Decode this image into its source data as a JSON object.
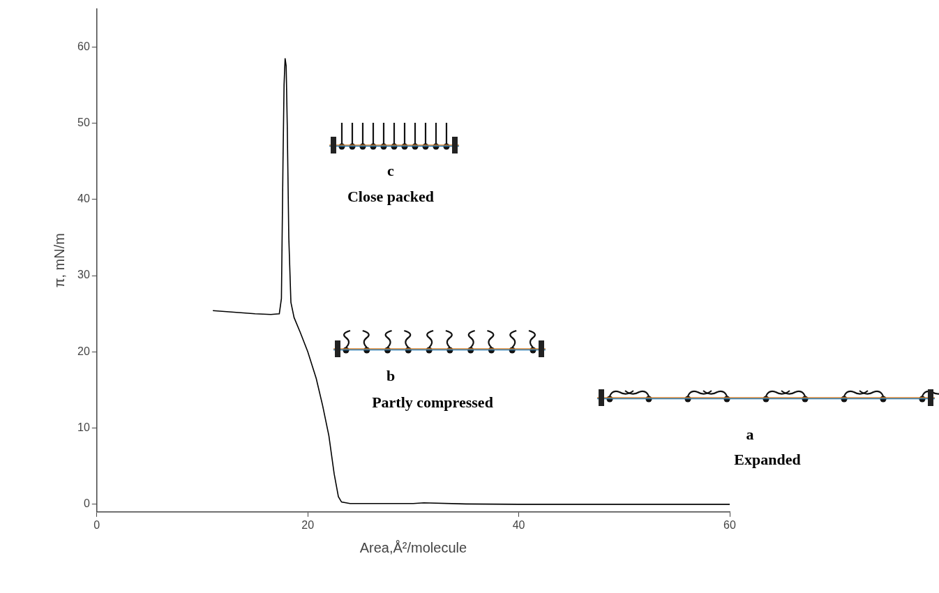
{
  "chart_data": {
    "type": "line",
    "x_label": "Area,Å²/molecule",
    "y_label": "π, mN/m",
    "color": "#000000",
    "x": [
      11.0,
      13.0,
      15.0,
      16.5,
      17.3,
      17.5,
      17.65,
      17.75,
      17.85,
      17.95,
      18.05,
      18.2,
      18.4,
      18.7,
      19.3,
      20.0,
      20.8,
      21.4,
      22.0,
      22.5,
      22.9,
      23.2,
      24.0,
      30.0,
      31.0,
      35.0,
      40.0,
      50.0,
      60.0
    ],
    "values": [
      25.4,
      25.2,
      25.0,
      24.9,
      25.0,
      27.0,
      45.0,
      55.0,
      58.5,
      57.5,
      50.0,
      35.0,
      26.5,
      24.5,
      22.5,
      20.0,
      16.5,
      13.0,
      9.0,
      4.0,
      1.0,
      0.3,
      0.1,
      0.1,
      0.2,
      0.05,
      0.0,
      0.0,
      0.0
    ],
    "xlim": [
      0,
      60
    ],
    "xticks": [
      0,
      20,
      40,
      60
    ],
    "ylim": [
      -1,
      65
    ],
    "yticks": [
      0,
      10,
      20,
      30,
      40,
      50,
      60
    ],
    "grid": false,
    "annotations": [
      {
        "letter": "c",
        "text": "Close packed"
      },
      {
        "letter": "b",
        "text": "Partly compressed"
      },
      {
        "letter": "a",
        "text": "Expanded"
      }
    ]
  }
}
